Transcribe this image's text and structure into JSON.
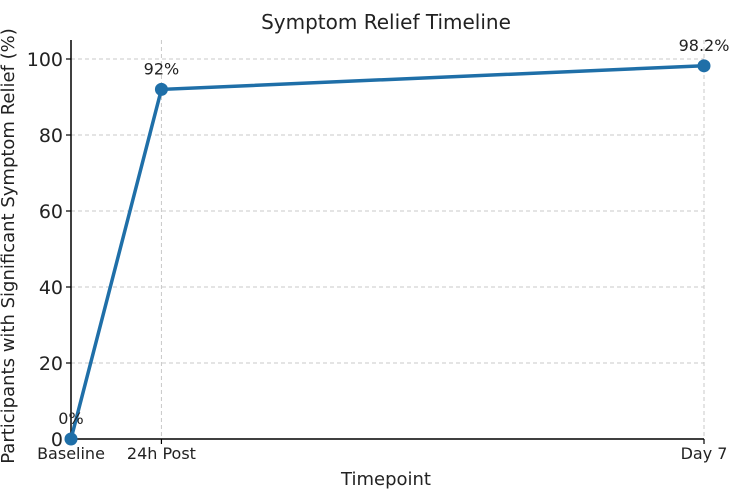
{
  "chart_data": {
    "type": "line",
    "title": "Symptom Relief Timeline",
    "xlabel": "Timepoint",
    "ylabel": "Participants with Significant Symptom Relief (%)",
    "categories": [
      "Baseline",
      "24h Post",
      "Day 7"
    ],
    "x_days": [
      0,
      1,
      7
    ],
    "series": [
      {
        "values": [
          0,
          92,
          98.2
        ],
        "labels": [
          "0%",
          "92%",
          "98.2%"
        ],
        "color": "#1f6fa8"
      }
    ],
    "yticks": [
      0,
      20,
      40,
      60,
      80,
      100
    ],
    "ylim": [
      0,
      105
    ],
    "grid": true
  }
}
